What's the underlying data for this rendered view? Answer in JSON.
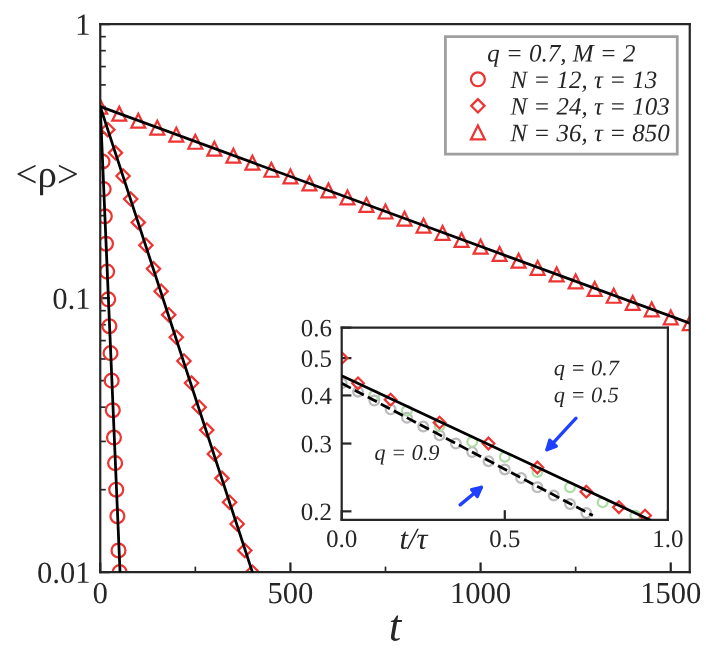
{
  "chart_data": [
    {
      "type": "scatter",
      "xlabel": "t",
      "ylabel": "<ρ>",
      "legend_title": "q = 0.7, M = 2",
      "legend": "top right",
      "log": "y",
      "xlim": [
        0,
        1550
      ],
      "ylim": [
        0.01,
        1
      ],
      "xticks": [
        0,
        500,
        1000,
        1500
      ],
      "yticks": [
        0.01,
        0.1,
        1
      ],
      "series": [
        {
          "name": "N = 12, τ = 13",
          "marker": "circle",
          "color": "#ee3333",
          "x": [
            6,
            9,
            12,
            15,
            18,
            21,
            24,
            27,
            30,
            33,
            36,
            39,
            42,
            45,
            48,
            51
          ],
          "values": [
            0.315,
            0.25,
            0.199,
            0.158,
            0.125,
            0.099,
            0.079,
            0.063,
            0.05,
            0.039,
            0.031,
            0.025,
            0.02,
            0.016,
            0.012,
            0.01
          ]
        },
        {
          "name": "N = 24, τ = 103",
          "marker": "diamond",
          "color": "#ee3333",
          "x": [
            20,
            40,
            60,
            80,
            100,
            120,
            140,
            160,
            180,
            200,
            220,
            240,
            260,
            280,
            300,
            320,
            340,
            360,
            380,
            400
          ],
          "values": [
            0.412,
            0.339,
            0.279,
            0.23,
            0.189,
            0.156,
            0.128,
            0.106,
            0.087,
            0.072,
            0.059,
            0.049,
            0.04,
            0.033,
            0.027,
            0.022,
            0.018,
            0.015,
            0.012,
            0.01
          ]
        },
        {
          "name": "N = 36, τ = 850",
          "marker": "triangle",
          "color": "#ee3333",
          "x": [
            0,
            50,
            100,
            150,
            200,
            250,
            300,
            350,
            400,
            450,
            500,
            550,
            600,
            650,
            700,
            750,
            800,
            850,
            900,
            950,
            1000,
            1050,
            1100,
            1150,
            1200,
            1250,
            1300,
            1350,
            1400,
            1450,
            1500,
            1550
          ],
          "values": [
            0.5,
            0.471,
            0.444,
            0.419,
            0.395,
            0.372,
            0.351,
            0.331,
            0.312,
            0.294,
            0.278,
            0.262,
            0.247,
            0.233,
            0.219,
            0.207,
            0.195,
            0.184,
            0.173,
            0.163,
            0.154,
            0.145,
            0.137,
            0.129,
            0.122,
            0.115,
            0.108,
            0.102,
            0.096,
            0.091,
            0.085,
            0.081
          ]
        },
        {
          "type": "line",
          "color": "#000000",
          "line_style": "solid",
          "x": [
            0,
            52
          ],
          "values": [
            0.5,
            0.01
          ]
        },
        {
          "type": "line",
          "color": "#000000",
          "line_style": "solid",
          "x": [
            0,
            400
          ],
          "values": [
            0.5,
            0.01
          ]
        },
        {
          "type": "line",
          "color": "#000000",
          "line_style": "solid",
          "x": [
            0,
            1550
          ],
          "values": [
            0.5,
            0.081
          ]
        }
      ]
    },
    {
      "type": "scatter",
      "xlabel": "t/τ",
      "log": "y",
      "xlim": [
        0,
        1
      ],
      "ylim": [
        0.19,
        0.6
      ],
      "xticks": [
        {
          "value": 0,
          "label": "0.0"
        },
        {
          "value": 0.5,
          "label": "0.5"
        },
        {
          "value": 1,
          "label": "1.0"
        }
      ],
      "yticks": [
        0.2,
        0.3,
        0.4,
        0.5,
        0.6
      ],
      "annotations": [
        "q = 0.7",
        "q = 0.5",
        "q = 0.9"
      ],
      "series": [
        {
          "marker": "circle",
          "color": "#bbbbbb",
          "x": [
            0,
            0.05,
            0.1,
            0.15,
            0.2,
            0.25,
            0.3,
            0.35,
            0.4,
            0.45,
            0.5,
            0.55,
            0.6,
            0.65,
            0.7,
            0.75
          ],
          "values": [
            0.43,
            0.409,
            0.388,
            0.368,
            0.35,
            0.332,
            0.315,
            0.3,
            0.285,
            0.27,
            0.257,
            0.244,
            0.231,
            0.22,
            0.209,
            0.198
          ]
        },
        {
          "marker": "circle",
          "color": "#b0dca8",
          "x": [
            0.1,
            0.2,
            0.3,
            0.4,
            0.5,
            0.6,
            0.7,
            0.8,
            0.9
          ],
          "values": [
            0.4,
            0.365,
            0.333,
            0.303,
            0.277,
            0.253,
            0.231,
            0.211,
            0.195
          ]
        },
        {
          "marker": "diamond",
          "color": "#ee3333",
          "x": [
            0,
            0.05,
            0.15,
            0.3,
            0.45,
            0.6,
            0.75,
            0.85,
            0.93
          ],
          "values": [
            0.5,
            0.43,
            0.39,
            0.34,
            0.3,
            0.26,
            0.225,
            0.205,
            0.195
          ]
        },
        {
          "type": "line",
          "color": "#000000",
          "line_style": "solid",
          "x": [
            0,
            0.945
          ],
          "values": [
            0.45,
            0.19
          ]
        },
        {
          "type": "line",
          "color": "#000000",
          "line_style": "dashed",
          "x": [
            0,
            0.77
          ],
          "values": [
            0.43,
            0.195
          ]
        }
      ]
    }
  ]
}
